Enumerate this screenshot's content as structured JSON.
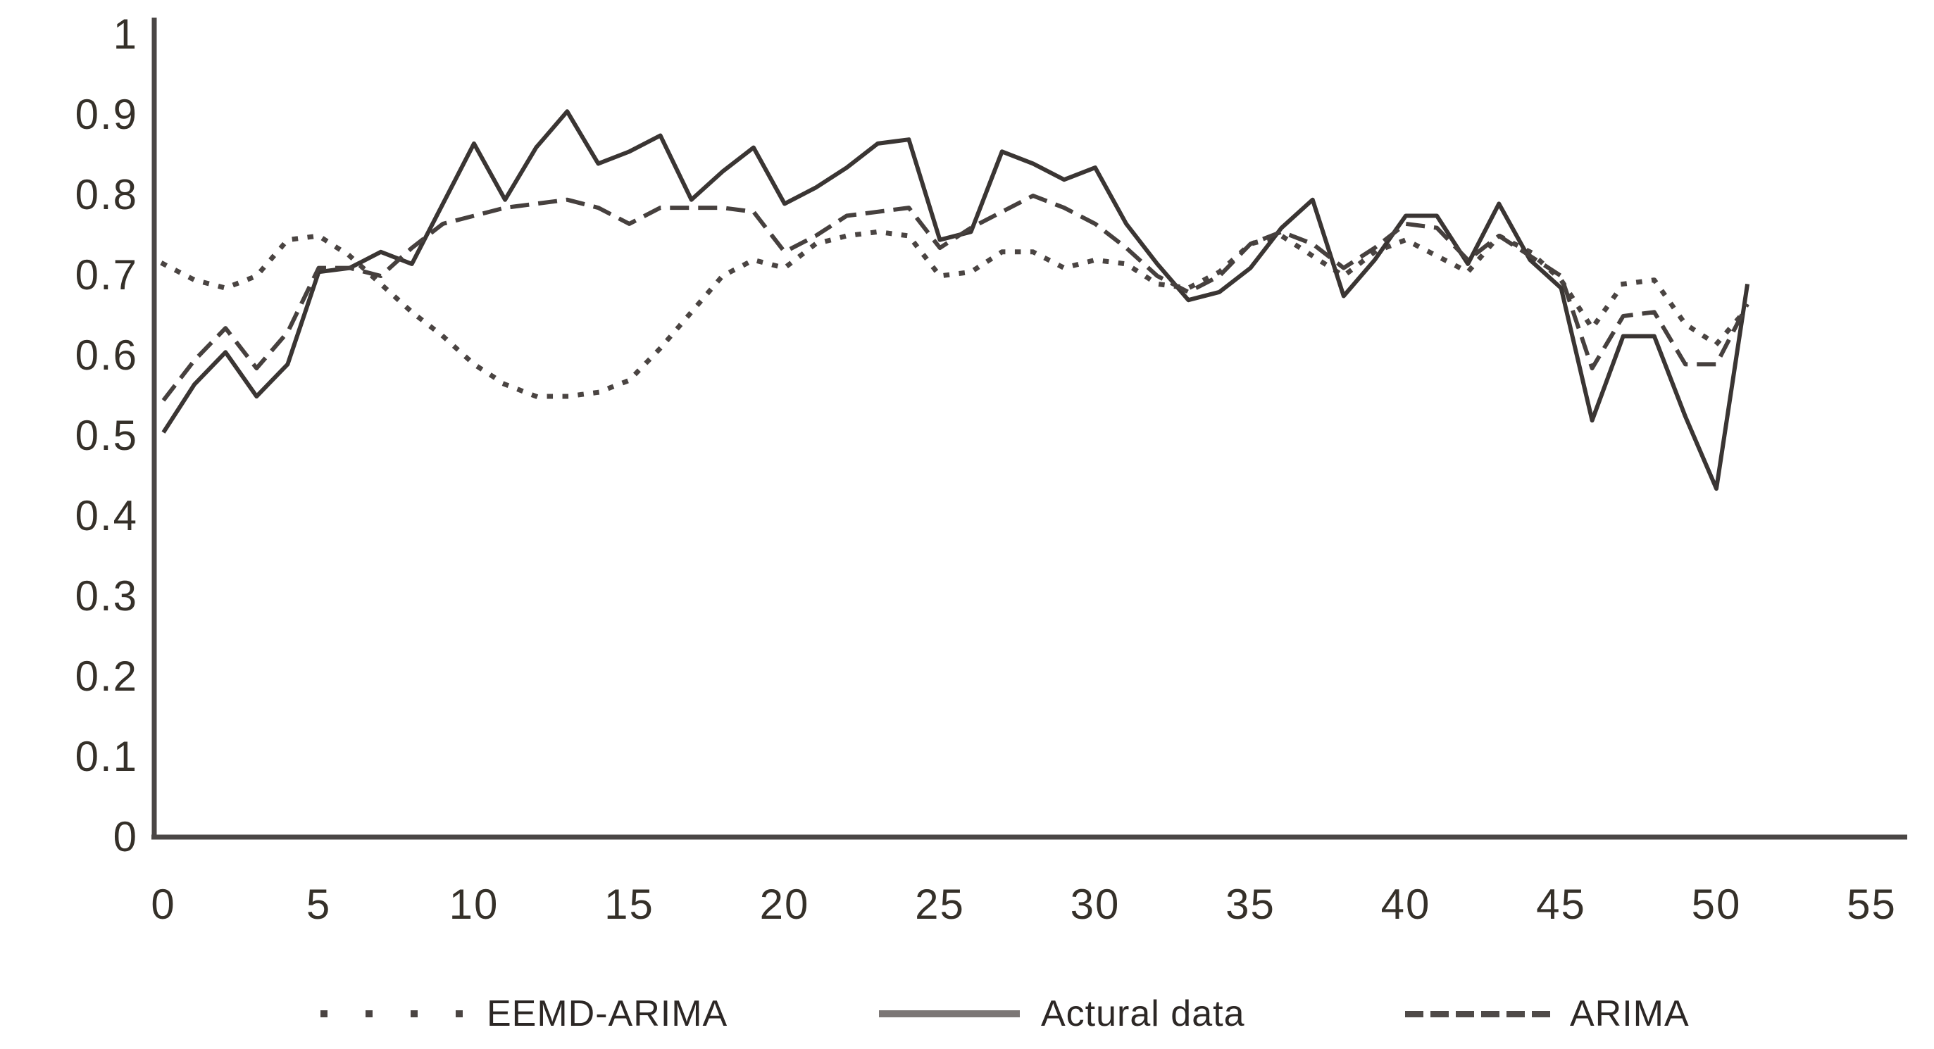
{
  "chart_data": {
    "type": "line",
    "title": "",
    "xlabel": "",
    "ylabel": "",
    "xlim": [
      0,
      55
    ],
    "ylim": [
      0,
      1
    ],
    "grid": false,
    "legend_position": "bottom",
    "x_ticks": [
      {
        "value": 0,
        "label": "0"
      },
      {
        "value": 5,
        "label": "5"
      },
      {
        "value": 10,
        "label": "10"
      },
      {
        "value": 15,
        "label": "15"
      },
      {
        "value": 20,
        "label": "20"
      },
      {
        "value": 25,
        "label": "25"
      },
      {
        "value": 30,
        "label": "30"
      },
      {
        "value": 35,
        "label": "35"
      },
      {
        "value": 40,
        "label": "40"
      },
      {
        "value": 45,
        "label": "45"
      },
      {
        "value": 50,
        "label": "50"
      },
      {
        "value": 55,
        "label": "55"
      }
    ],
    "y_ticks": [
      {
        "value": 0,
        "label": "0"
      },
      {
        "value": 0.1,
        "label": "0.1"
      },
      {
        "value": 0.2,
        "label": "0.2"
      },
      {
        "value": 0.3,
        "label": "0.3"
      },
      {
        "value": 0.4,
        "label": "0.4"
      },
      {
        "value": 0.5,
        "label": "0.5"
      },
      {
        "value": 0.6,
        "label": "0.6"
      },
      {
        "value": 0.7,
        "label": "0.7"
      },
      {
        "value": 0.8,
        "label": "0.8"
      },
      {
        "value": 0.9,
        "label": "0.9"
      },
      {
        "value": 1,
        "label": "1"
      }
    ],
    "x": [
      0,
      1,
      2,
      3,
      4,
      5,
      6,
      7,
      8,
      9,
      10,
      11,
      12,
      13,
      14,
      15,
      16,
      17,
      18,
      19,
      20,
      21,
      22,
      23,
      24,
      25,
      26,
      27,
      28,
      29,
      30,
      31,
      32,
      33,
      34,
      35,
      36,
      37,
      38,
      39,
      40,
      41,
      42,
      43,
      44,
      45,
      46,
      47,
      48,
      49,
      50,
      51
    ],
    "series": [
      {
        "name": "EEMD-ARIMA",
        "line_style": "dotted",
        "color": "#4a4442",
        "values": [
          0.715,
          0.695,
          0.685,
          0.7,
          0.745,
          0.75,
          0.725,
          0.69,
          0.655,
          0.625,
          0.59,
          0.565,
          0.55,
          0.55,
          0.555,
          0.57,
          0.61,
          0.655,
          0.7,
          0.72,
          0.71,
          0.74,
          0.75,
          0.755,
          0.75,
          0.7,
          0.705,
          0.73,
          0.73,
          0.71,
          0.72,
          0.715,
          0.69,
          0.685,
          0.705,
          0.74,
          0.75,
          0.725,
          0.7,
          0.73,
          0.745,
          0.725,
          0.705,
          0.75,
          0.73,
          0.695,
          0.635,
          0.69,
          0.695,
          0.64,
          0.615,
          0.66
        ]
      },
      {
        "name": "Actural data",
        "line_style": "solid",
        "color": "#3a3533",
        "values": [
          0.505,
          0.565,
          0.605,
          0.55,
          0.59,
          0.705,
          0.71,
          0.73,
          0.715,
          0.79,
          0.865,
          0.795,
          0.86,
          0.905,
          0.84,
          0.855,
          0.875,
          0.795,
          0.83,
          0.86,
          0.79,
          0.81,
          0.835,
          0.865,
          0.87,
          0.745,
          0.755,
          0.855,
          0.84,
          0.82,
          0.835,
          0.765,
          0.715,
          0.67,
          0.68,
          0.71,
          0.76,
          0.795,
          0.675,
          0.72,
          0.775,
          0.775,
          0.715,
          0.79,
          0.72,
          0.685,
          0.52,
          0.625,
          0.625,
          0.525,
          0.435,
          0.69
        ]
      },
      {
        "name": "ARIMA",
        "line_style": "dashed",
        "color": "#46403e",
        "values": [
          0.545,
          0.595,
          0.635,
          0.585,
          0.63,
          0.71,
          0.71,
          0.7,
          0.735,
          0.765,
          0.775,
          0.785,
          0.79,
          0.795,
          0.785,
          0.765,
          0.785,
          0.785,
          0.785,
          0.78,
          0.73,
          0.75,
          0.775,
          0.78,
          0.785,
          0.735,
          0.76,
          0.78,
          0.8,
          0.785,
          0.765,
          0.735,
          0.7,
          0.68,
          0.7,
          0.74,
          0.755,
          0.74,
          0.71,
          0.735,
          0.765,
          0.76,
          0.72,
          0.75,
          0.725,
          0.7,
          0.585,
          0.65,
          0.655,
          0.59,
          0.59,
          0.665
        ]
      }
    ],
    "axis_color": "#4a4645",
    "tick_label_color": "#353029"
  },
  "legend": {
    "items": [
      {
        "label": "EEMD-ARIMA"
      },
      {
        "label": "Actural data"
      },
      {
        "label": "ARIMA"
      }
    ]
  }
}
